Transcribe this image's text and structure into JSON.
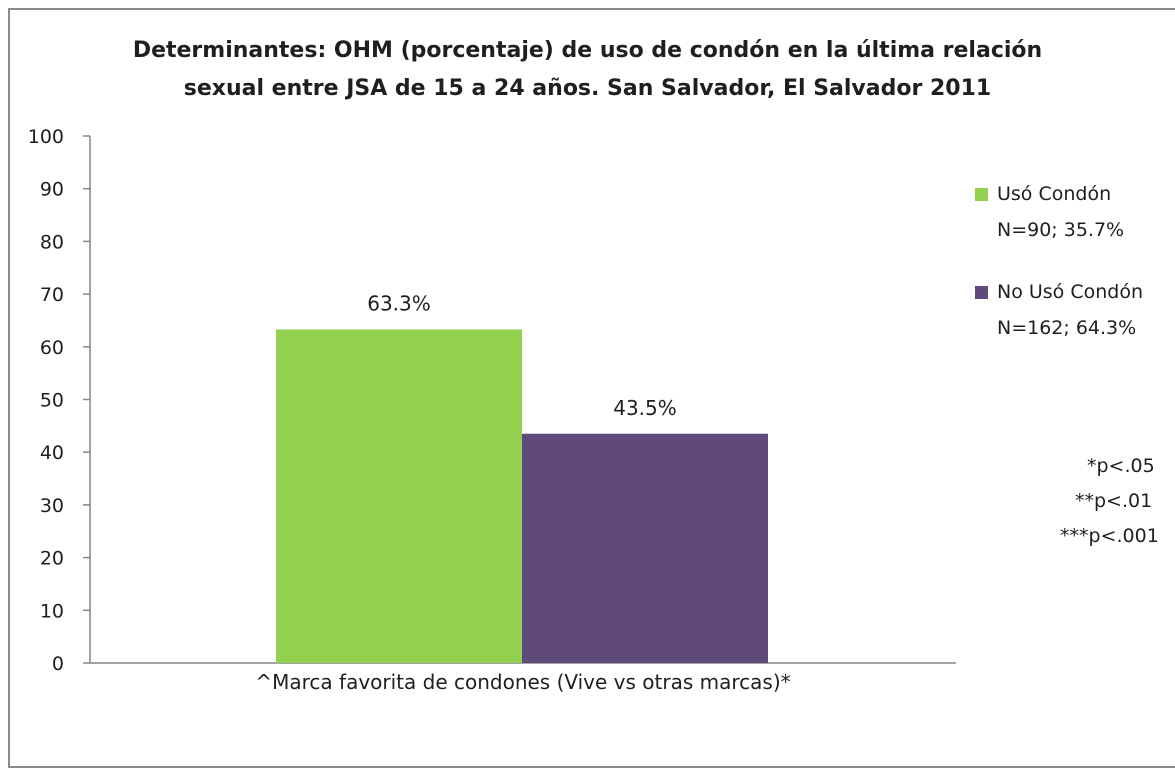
{
  "chart_data": {
    "type": "bar",
    "title_lines": [
      "Determinantes: OHM (porcentaje) de uso de condón en la última relación",
      "sexual entre JSA de 15 a 24 años. San Salvador, El Salvador 2011"
    ],
    "categories": [
      "^Marca favorita de condones (Vive vs otras marcas)*"
    ],
    "series": [
      {
        "name": "Usó Condón",
        "name_detail": "N=90; 35.7%",
        "values": [
          63.3
        ],
        "data_labels": [
          "63.3%"
        ],
        "color": "#92d050"
      },
      {
        "name": "No Usó Condón",
        "name_detail": "N=162; 64.3%",
        "values": [
          43.5
        ],
        "data_labels": [
          "43.5%"
        ],
        "color": "#604a7b"
      }
    ],
    "xlabel": "^Marca favorita de condones (Vive vs otras marcas)*",
    "ylabel": "",
    "ylim": [
      0,
      100
    ],
    "yticks": [
      "0",
      "10",
      "20",
      "30",
      "40",
      "50",
      "60",
      "70",
      "80",
      "90",
      "100"
    ],
    "grid": false,
    "legend_position": "right",
    "notes": [
      "*p<.05",
      "**p<.01",
      "***p<.001"
    ]
  }
}
